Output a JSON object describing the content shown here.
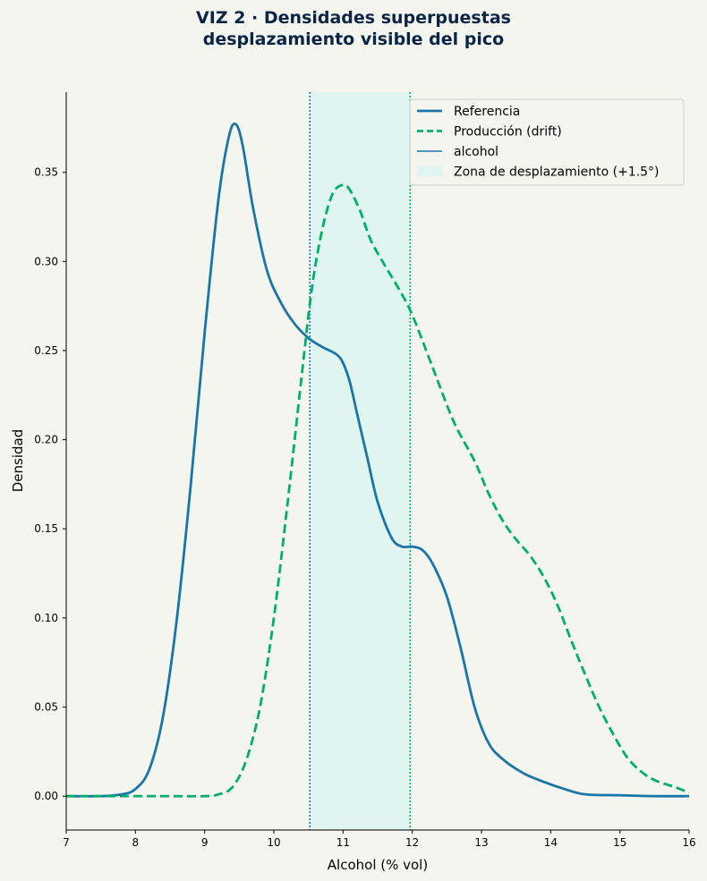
{
  "chart_data": {
    "type": "line",
    "title_lines": [
      "VIZ 2 · Densidades superpuestas",
      "desplazamiento visible del pico"
    ],
    "xlabel": "Alcohol (% vol)",
    "ylabel": "Densidad",
    "xlim": [
      7,
      16
    ],
    "ylim": [
      -0.019,
      0.395
    ],
    "xticks": [
      7,
      8,
      9,
      10,
      11,
      12,
      13,
      14,
      15,
      16
    ],
    "yticks": [
      0.0,
      0.05,
      0.1,
      0.15,
      0.2,
      0.25,
      0.3,
      0.35
    ],
    "ytick_labels": [
      "0.00",
      "0.05",
      "0.10",
      "0.15",
      "0.20",
      "0.25",
      "0.30",
      "0.35"
    ],
    "grid": false,
    "legend_position": "top-right",
    "series": [
      {
        "name": "Referencia",
        "style": "solid",
        "color": "#1a75a8",
        "x": [
          7.0,
          7.5,
          7.8,
          8.0,
          8.2,
          8.4,
          8.6,
          8.8,
          9.0,
          9.2,
          9.35,
          9.45,
          9.55,
          9.7,
          9.9,
          10.1,
          10.3,
          10.5,
          10.7,
          10.9,
          11.0,
          11.1,
          11.2,
          11.35,
          11.5,
          11.7,
          11.85,
          12.0,
          12.15,
          12.3,
          12.5,
          12.7,
          12.9,
          13.1,
          13.3,
          13.6,
          13.9,
          14.2,
          14.5,
          15.0,
          15.5,
          16.0
        ],
        "y": [
          0.0,
          0.0,
          0.001,
          0.004,
          0.015,
          0.045,
          0.1,
          0.175,
          0.26,
          0.335,
          0.37,
          0.377,
          0.365,
          0.33,
          0.295,
          0.277,
          0.265,
          0.257,
          0.252,
          0.248,
          0.243,
          0.232,
          0.215,
          0.19,
          0.165,
          0.145,
          0.14,
          0.14,
          0.138,
          0.13,
          0.112,
          0.083,
          0.05,
          0.03,
          0.021,
          0.013,
          0.008,
          0.004,
          0.001,
          0.0005,
          0.0,
          0.0
        ]
      },
      {
        "name": "Producción (drift)",
        "style": "dashed",
        "color": "#00b06a",
        "x": [
          7.0,
          8.0,
          8.5,
          9.0,
          9.2,
          9.4,
          9.6,
          9.8,
          10.0,
          10.2,
          10.4,
          10.55,
          10.7,
          10.85,
          11.0,
          11.1,
          11.25,
          11.4,
          11.6,
          11.8,
          12.0,
          12.3,
          12.6,
          12.9,
          13.1,
          13.3,
          13.5,
          13.7,
          13.9,
          14.1,
          14.3,
          14.5,
          14.7,
          14.9,
          15.1,
          15.3,
          15.5,
          15.8,
          16.0
        ],
        "y": [
          0.0,
          0.0,
          0.0,
          0.0,
          0.001,
          0.005,
          0.02,
          0.05,
          0.1,
          0.165,
          0.235,
          0.285,
          0.318,
          0.338,
          0.343,
          0.34,
          0.328,
          0.312,
          0.298,
          0.285,
          0.27,
          0.24,
          0.21,
          0.188,
          0.17,
          0.155,
          0.144,
          0.135,
          0.123,
          0.107,
          0.087,
          0.068,
          0.05,
          0.035,
          0.022,
          0.014,
          0.009,
          0.005,
          0.002
        ]
      }
    ],
    "vertical_lines": [
      {
        "x": 10.52,
        "color": "#1a75a8",
        "style": "dotted"
      },
      {
        "x": 11.97,
        "color": "#00b06a",
        "style": "dotted"
      }
    ],
    "shaded_region": {
      "x_start": 10.52,
      "x_end": 11.97,
      "color": "#e0f5f0"
    },
    "legend": [
      {
        "label": "Referencia",
        "kind": "line-thick",
        "color": "#1a75a8"
      },
      {
        "label": "Producción (drift)",
        "kind": "line-dashed",
        "color": "#00b06a"
      },
      {
        "label": "alcohol",
        "kind": "line-thin",
        "color": "#1a75a8"
      },
      {
        "label": "Zona de desplazamiento (+1.5°)",
        "kind": "patch",
        "color": "#e0f5f0"
      }
    ]
  }
}
